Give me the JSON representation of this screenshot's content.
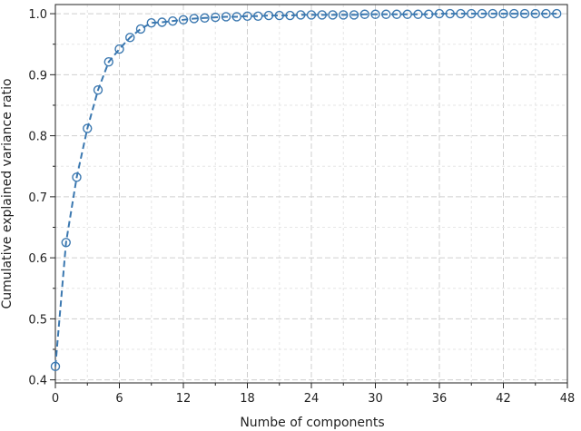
{
  "chart_data": {
    "type": "line",
    "title": "",
    "xlabel": "Numbe of components",
    "ylabel": "Cumulative explained variance ratio",
    "xlim": [
      0,
      48
    ],
    "ylim": [
      0.395,
      1.015
    ],
    "xticks": [
      0,
      6,
      12,
      18,
      24,
      30,
      36,
      42,
      48
    ],
    "yticks": [
      0.4,
      0.5,
      0.6,
      0.7,
      0.8,
      0.9,
      1.0
    ],
    "grid": true,
    "series": [
      {
        "line_style": "dashed",
        "marker": "open-circle",
        "color": "#3b78b0",
        "x": [
          0,
          1,
          2,
          3,
          4,
          5,
          6,
          7,
          8,
          9,
          10,
          11,
          12,
          13,
          14,
          15,
          16,
          17,
          18,
          19,
          20,
          21,
          22,
          23,
          24,
          25,
          26,
          27,
          28,
          29,
          30,
          31,
          32,
          33,
          34,
          35,
          36,
          37,
          38,
          39,
          40,
          41,
          42,
          43,
          44,
          45,
          46,
          47
        ],
        "values": [
          0.422,
          0.625,
          0.732,
          0.812,
          0.875,
          0.921,
          0.942,
          0.961,
          0.975,
          0.985,
          0.986,
          0.988,
          0.99,
          0.992,
          0.993,
          0.994,
          0.995,
          0.995,
          0.996,
          0.996,
          0.997,
          0.997,
          0.997,
          0.998,
          0.998,
          0.998,
          0.998,
          0.998,
          0.998,
          0.999,
          0.999,
          0.999,
          0.999,
          0.999,
          0.999,
          0.999,
          1.0,
          1.0,
          1.0,
          1.0,
          1.0,
          1.0,
          1.0,
          1.0,
          1.0,
          1.0,
          1.0,
          1.0
        ]
      }
    ]
  }
}
